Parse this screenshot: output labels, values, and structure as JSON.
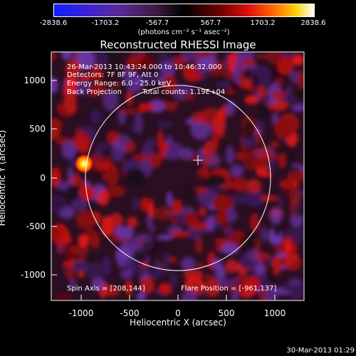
{
  "colorbar": {
    "ticks": [
      "-2838.6",
      "-1703.2",
      "-567.7",
      "567.7",
      "1703.2",
      "2838.6"
    ],
    "units": "(photons cm⁻² s⁻¹ asec⁻²)"
  },
  "plot": {
    "title": "Reconstructed RHESSI Image",
    "xlabel": "Heliocentric X (arcsec)",
    "ylabel": "Heliocentric Y (arcsec)",
    "xticks": [
      "-1000",
      "-500",
      "0",
      "500",
      "1000"
    ],
    "yticks": [
      "1000",
      "500",
      "0",
      "-500",
      "-1000"
    ]
  },
  "info": {
    "time_range": "26-Mar-2013 10:43:24.000 to 10:46:32.000",
    "detectors": "Detectors: 7F 8F 9F, Att 0",
    "energy": "Energy Range: 6.0 - 25.0 keV",
    "method": "Back Projection",
    "total_counts": "Total counts: 1.19E+04",
    "spin_axis": "Spin Axis = [208,144]",
    "flare_position": "Flare Position = [-961,137]"
  },
  "footer": {
    "date": "30-Mar-2013 01:29"
  },
  "colors": {
    "low": "#1020ff",
    "mid": "#000000",
    "high": "#ffffff"
  }
}
